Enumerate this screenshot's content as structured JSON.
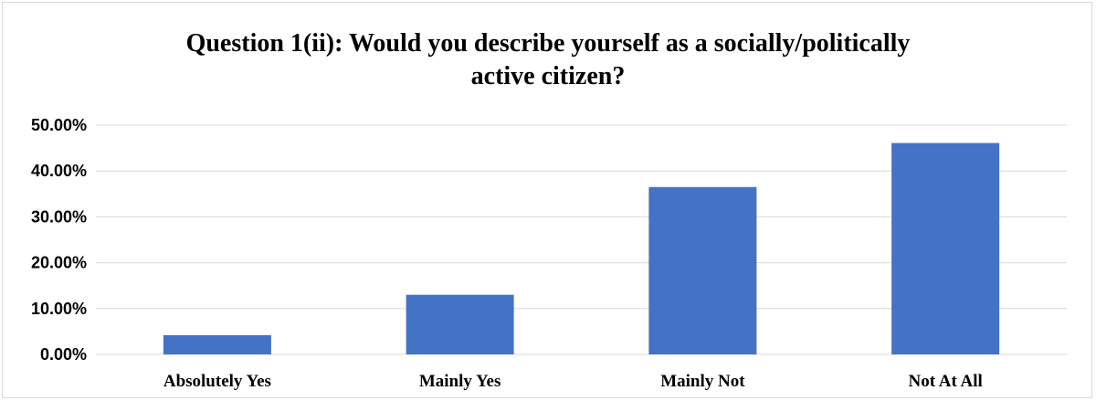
{
  "chart_data": {
    "type": "bar",
    "title_line1": "Question  1(ii): Would you describe yourself as a socially/politically",
    "title_line2": "active citizen?",
    "categories": [
      "Absolutely Yes",
      "Mainly Yes",
      "Mainly Not",
      "Not At All"
    ],
    "values": [
      4.2,
      13.0,
      36.5,
      46.1
    ],
    "ylim": [
      0,
      50
    ],
    "yticks": [
      0,
      10,
      20,
      30,
      40,
      50
    ],
    "ytick_labels": [
      "0.00%",
      "10.00%",
      "20.00%",
      "30.00%",
      "40.00%",
      "50.00%"
    ],
    "grid": true,
    "bar_color": "#4472C4",
    "grid_color": "#d9d9d9"
  }
}
